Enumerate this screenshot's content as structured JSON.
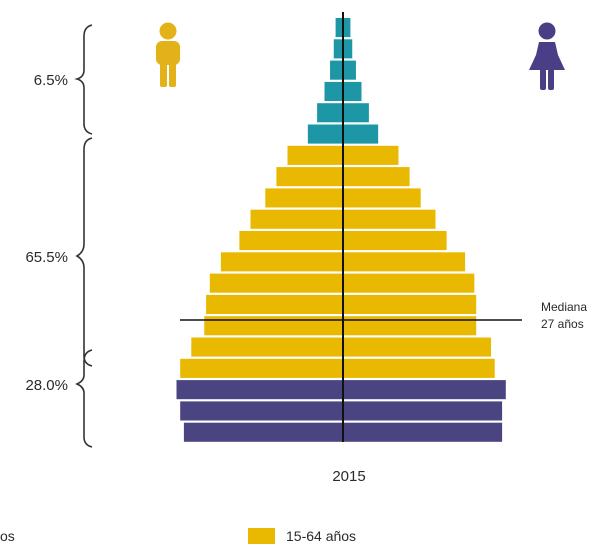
{
  "chart_data": {
    "type": "bar",
    "subtype": "population-pyramid",
    "year": "2015",
    "colors": {
      "youth": "#4a4480",
      "working": "#e9b800",
      "elderly": "#1d97a6",
      "male_icon": "#e3b21a",
      "female_icon": "#4a3f86",
      "center_line": "#111111",
      "bracket": "#333333"
    },
    "bands": [
      {
        "group": "elderly",
        "male": 0.2,
        "female": 0.2
      },
      {
        "group": "elderly",
        "male": 0.25,
        "female": 0.25
      },
      {
        "group": "elderly",
        "male": 0.35,
        "female": 0.35
      },
      {
        "group": "elderly",
        "male": 0.5,
        "female": 0.5
      },
      {
        "group": "elderly",
        "male": 0.7,
        "female": 0.7
      },
      {
        "group": "elderly",
        "male": 0.95,
        "female": 0.95
      },
      {
        "group": "working",
        "male": 1.5,
        "female": 1.5
      },
      {
        "group": "working",
        "male": 1.8,
        "female": 1.8
      },
      {
        "group": "working",
        "male": 2.1,
        "female": 2.1
      },
      {
        "group": "working",
        "male": 2.5,
        "female": 2.5
      },
      {
        "group": "working",
        "male": 2.8,
        "female": 2.8
      },
      {
        "group": "working",
        "male": 3.3,
        "female": 3.3
      },
      {
        "group": "working",
        "male": 3.6,
        "female": 3.55
      },
      {
        "group": "working",
        "male": 3.7,
        "female": 3.6
      },
      {
        "group": "working",
        "male": 3.75,
        "female": 3.6
      },
      {
        "group": "working",
        "male": 4.1,
        "female": 4.0
      },
      {
        "group": "working",
        "male": 4.4,
        "female": 4.1
      },
      {
        "group": "youth",
        "male": 4.5,
        "female": 4.4
      },
      {
        "group": "youth",
        "male": 4.4,
        "female": 4.3
      },
      {
        "group": "youth",
        "male": 4.3,
        "female": 4.3
      }
    ],
    "brackets": [
      {
        "label": "6.5%"
      },
      {
        "label": "65.5%"
      },
      {
        "label": "28.0%"
      }
    ],
    "median": {
      "line1": "Mediana",
      "line2": "27 años"
    },
    "legend": [
      {
        "label": "os",
        "group": "youth",
        "partial": true
      },
      {
        "label": "15-64 años",
        "group": "working"
      }
    ]
  }
}
